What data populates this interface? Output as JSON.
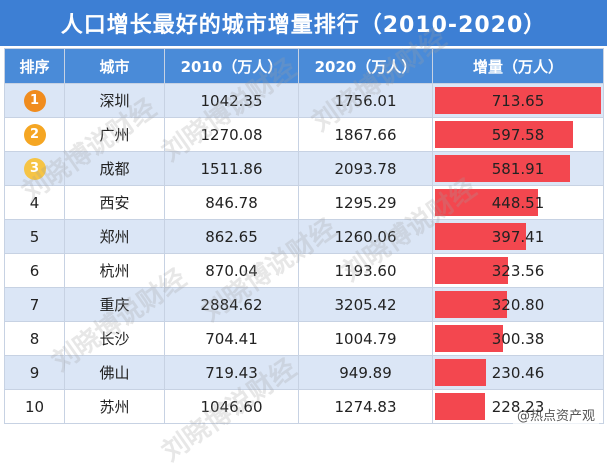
{
  "title": "人口增长最好的城市增量排行（2010-2020）",
  "headers": [
    "排序",
    "城市",
    "2010（万人）",
    "2020（万人）",
    "增量（万人）"
  ],
  "colors": {
    "title_bg": "#3d7fd4",
    "header_bg": "#4a8bd8",
    "bar": "#f3474f",
    "medal1": "#f08c1e",
    "medal2": "#f5a623",
    "medal3": "#f6c445"
  },
  "watermark": "刘晓博说财经",
  "footer": "@热点资产观",
  "chart_data": {
    "type": "table",
    "title": "人口增长最好的城市增量排行（2010-2020）",
    "columns": [
      "排序",
      "城市",
      "2010（万人）",
      "2020（万人）",
      "增量（万人）"
    ],
    "bar_column": "增量（万人）",
    "rows": [
      {
        "rank": "1",
        "city": "深圳",
        "y2010": "1042.35",
        "y2020": "1756.01",
        "increase": "713.65",
        "increase_value": 713.65
      },
      {
        "rank": "2",
        "city": "广州",
        "y2010": "1270.08",
        "y2020": "1867.66",
        "increase": "597.58",
        "increase_value": 597.58
      },
      {
        "rank": "3",
        "city": "成都",
        "y2010": "1511.86",
        "y2020": "2093.78",
        "increase": "581.91",
        "increase_value": 581.91
      },
      {
        "rank": "4",
        "city": "西安",
        "y2010": "846.78",
        "y2020": "1295.29",
        "increase": "448.51",
        "increase_value": 448.51
      },
      {
        "rank": "5",
        "city": "郑州",
        "y2010": "862.65",
        "y2020": "1260.06",
        "increase": "397.41",
        "increase_value": 397.41
      },
      {
        "rank": "6",
        "city": "杭州",
        "y2010": "870.04",
        "y2020": "1193.60",
        "increase": "323.56",
        "increase_value": 323.56
      },
      {
        "rank": "7",
        "city": "重庆",
        "y2010": "2884.62",
        "y2020": "3205.42",
        "increase": "320.80",
        "increase_value": 320.8
      },
      {
        "rank": "8",
        "city": "长沙",
        "y2010": "704.41",
        "y2020": "1004.79",
        "increase": "300.38",
        "increase_value": 300.38
      },
      {
        "rank": "9",
        "city": "佛山",
        "y2010": "719.43",
        "y2020": "949.89",
        "increase": "230.46",
        "increase_value": 230.46
      },
      {
        "rank": "10",
        "city": "苏州",
        "y2010": "1046.60",
        "y2020": "1274.83",
        "increase": "228.23",
        "increase_value": 228.23
      }
    ]
  }
}
